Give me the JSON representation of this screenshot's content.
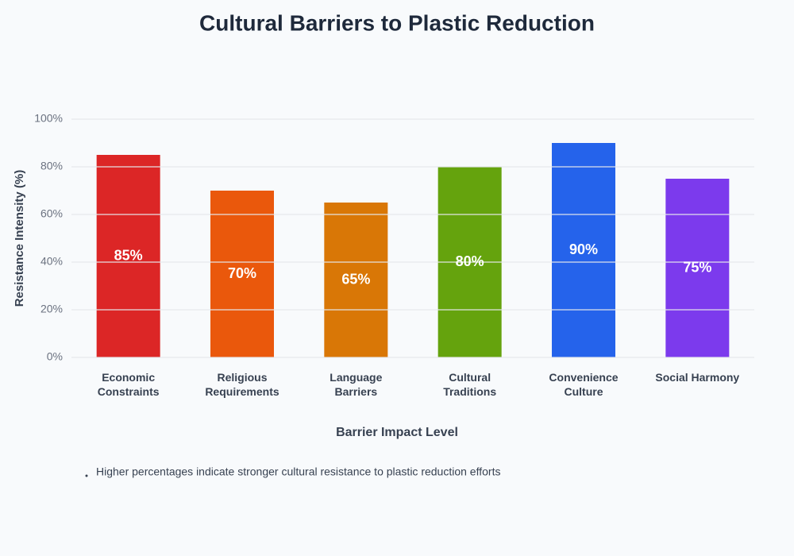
{
  "chart_data": {
    "type": "bar",
    "title": "Cultural Barriers to Plastic Reduction",
    "x_label": "Barrier Impact Level",
    "y_label": "Resistance Intensity (%)",
    "categories": [
      "Economic Constraints",
      "Religious Requirements",
      "Language Barriers",
      "Cultural Traditions",
      "Convenience Culture",
      "Social Harmony"
    ],
    "values": [
      85,
      70,
      65,
      80,
      90,
      75
    ],
    "value_labels": [
      "85%",
      "70%",
      "65%",
      "80%",
      "90%",
      "75%"
    ],
    "colors": [
      "#dc2626",
      "#ea580c",
      "#d97706",
      "#65a30d",
      "#2563eb",
      "#7c3aed"
    ],
    "ylim": [
      0,
      100
    ],
    "yticks": [
      {
        "value": 0,
        "label": "0%"
      },
      {
        "value": 20,
        "label": "20%"
      },
      {
        "value": 40,
        "label": "40%"
      },
      {
        "value": 60,
        "label": "60%"
      },
      {
        "value": 80,
        "label": "80%"
      },
      {
        "value": 100,
        "label": "100%"
      }
    ],
    "grid": true,
    "note": "Higher percentages indicate stronger cultural resistance to plastic reduction efforts"
  }
}
